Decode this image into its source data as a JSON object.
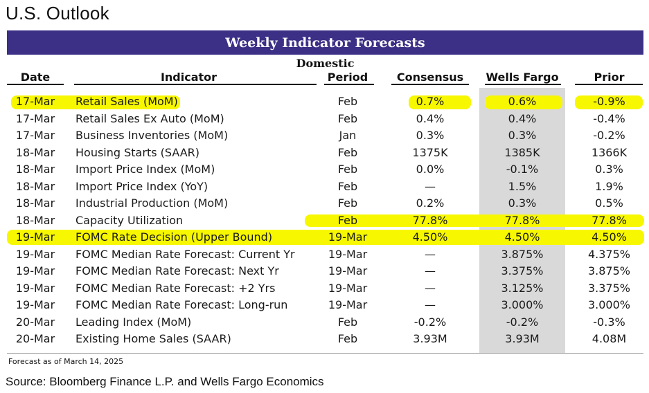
{
  "page_title": "U.S. Outlook",
  "banner_title": "Weekly Indicator Forecasts",
  "section_label": "Domestic",
  "columns": {
    "date": "Date",
    "indicator": "Indicator",
    "period": "Period",
    "consensus": "Consensus",
    "wells_fargo": "Wells Fargo",
    "prior": "Prior"
  },
  "colors": {
    "banner": "#3b2f86",
    "highlight": "#f7f700",
    "wells_fargo_shade": "#d9d9d9"
  },
  "rows": [
    {
      "date": "17-Mar",
      "indicator": "Retail Sales (MoM)",
      "period": "Feb",
      "consensus": "0.7%",
      "wells_fargo": "0.6%",
      "prior": "-0.9%",
      "highlighted": true
    },
    {
      "date": "17-Mar",
      "indicator": "Retail Sales Ex Auto (MoM)",
      "period": "Feb",
      "consensus": "0.4%",
      "wells_fargo": "0.4%",
      "prior": "-0.4%",
      "highlighted": false
    },
    {
      "date": "17-Mar",
      "indicator": "Business Inventories (MoM)",
      "period": "Jan",
      "consensus": "0.3%",
      "wells_fargo": "0.3%",
      "prior": "-0.2%",
      "highlighted": false
    },
    {
      "date": "18-Mar",
      "indicator": "Housing Starts (SAAR)",
      "period": "Feb",
      "consensus": "1375K",
      "wells_fargo": "1385K",
      "prior": "1366K",
      "highlighted": false
    },
    {
      "date": "18-Mar",
      "indicator": "Import Price Index (MoM)",
      "period": "Feb",
      "consensus": "0.0%",
      "wells_fargo": "-0.1%",
      "prior": "0.3%",
      "highlighted": false
    },
    {
      "date": "18-Mar",
      "indicator": "Import Price Index (YoY)",
      "period": "Feb",
      "consensus": "—",
      "wells_fargo": "1.5%",
      "prior": "1.9%",
      "highlighted": false
    },
    {
      "date": "18-Mar",
      "indicator": "Industrial Production (MoM)",
      "period": "Feb",
      "consensus": "0.2%",
      "wells_fargo": "0.3%",
      "prior": "0.5%",
      "highlighted": false
    },
    {
      "date": "18-Mar",
      "indicator": "Capacity Utilization",
      "period": "Feb",
      "consensus": "77.8%",
      "wells_fargo": "77.8%",
      "prior": "77.8%",
      "highlighted": true
    },
    {
      "date": "19-Mar",
      "indicator": "FOMC Rate Decision (Upper Bound)",
      "period": "19-Mar",
      "consensus": "4.50%",
      "wells_fargo": "4.50%",
      "prior": "4.50%",
      "highlighted": true
    },
    {
      "date": "19-Mar",
      "indicator": "FOMC Median Rate Forecast: Current Yr",
      "period": "19-Mar",
      "consensus": "—",
      "wells_fargo": "3.875%",
      "prior": "4.375%",
      "highlighted": false
    },
    {
      "date": "19-Mar",
      "indicator": "FOMC Median Rate Forecast: Next Yr",
      "period": "19-Mar",
      "consensus": "—",
      "wells_fargo": "3.375%",
      "prior": "3.875%",
      "highlighted": false
    },
    {
      "date": "19-Mar",
      "indicator": "FOMC Median Rate Forecast: +2 Yrs",
      "period": "19-Mar",
      "consensus": "—",
      "wells_fargo": "3.125%",
      "prior": "3.375%",
      "highlighted": false
    },
    {
      "date": "19-Mar",
      "indicator": "FOMC Median Rate Forecast: Long-run",
      "period": "19-Mar",
      "consensus": "—",
      "wells_fargo": "3.000%",
      "prior": "3.000%",
      "highlighted": false
    },
    {
      "date": "20-Mar",
      "indicator": "Leading Index (MoM)",
      "period": "Feb",
      "consensus": "-0.2%",
      "wells_fargo": "-0.2%",
      "prior": "-0.3%",
      "highlighted": false
    },
    {
      "date": "20-Mar",
      "indicator": "Existing Home Sales (SAAR)",
      "period": "Feb",
      "consensus": "3.93M",
      "wells_fargo": "3.93M",
      "prior": "4.08M",
      "highlighted": false
    }
  ],
  "footnote": "Forecast as of March 14, 2025",
  "source": "Source: Bloomberg Finance L.P. and Wells Fargo Economics"
}
